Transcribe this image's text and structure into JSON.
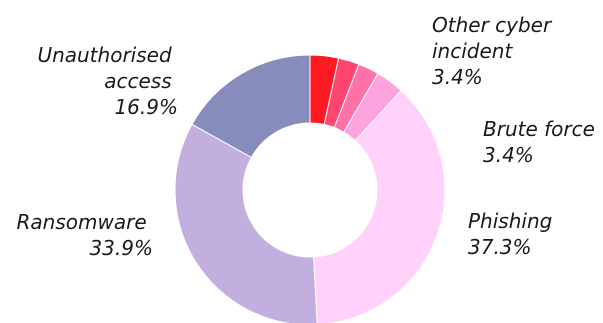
{
  "chart_data": {
    "type": "pie",
    "variant": "donut",
    "title": "",
    "categories": [
      "Other cyber incident (segment 1)",
      "Other cyber incident (segment 2)",
      "Other cyber incident (segment 3)",
      "Brute force",
      "Phishing",
      "Ransomware",
      "Unauthorised access"
    ],
    "values": [
      3.4,
      2.5,
      2.5,
      3.4,
      37.3,
      33.9,
      16.9
    ],
    "colors": [
      "#ff1a24",
      "#ff4570",
      "#ff72a8",
      "#ffa3de",
      "#ffd1fb",
      "#c3aee0",
      "#868dbd"
    ],
    "labels": [
      {
        "name_lines": [
          "Other cyber",
          "incident"
        ],
        "value": "3.4%"
      },
      {
        "name_lines": [
          "Brute force"
        ],
        "value": "3.4%"
      },
      {
        "name_lines": [
          "Phishing"
        ],
        "value": "37.3%"
      },
      {
        "name_lines": [
          "Ransomware"
        ],
        "value": "33.9%"
      },
      {
        "name_lines": [
          "Unauthorised",
          "access"
        ],
        "value": "16.9%"
      }
    ]
  }
}
